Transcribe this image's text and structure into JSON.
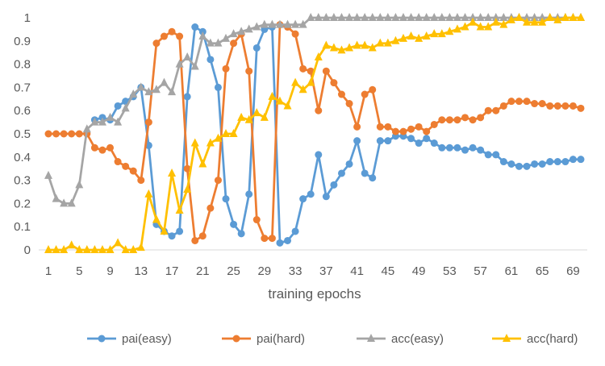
{
  "chart_data": {
    "type": "line",
    "title": "",
    "xlabel": "training epochs",
    "ylabel": "",
    "xlim": [
      1,
      70
    ],
    "ylim": [
      0,
      1
    ],
    "x_tick_labels": [
      "1",
      "5",
      "9",
      "13",
      "17",
      "21",
      "25",
      "29",
      "33",
      "37",
      "41",
      "45",
      "49",
      "53",
      "57",
      "61",
      "65",
      "69"
    ],
    "y_tick_labels": [
      "0",
      "0.1",
      "0.2",
      "0.3",
      "0.4",
      "0.5",
      "0.6",
      "0.7",
      "0.8",
      "0.9",
      "1"
    ],
    "legend_position": "bottom",
    "grid": false,
    "x": [
      1,
      2,
      3,
      4,
      5,
      6,
      7,
      8,
      9,
      10,
      11,
      12,
      13,
      14,
      15,
      16,
      17,
      18,
      19,
      20,
      21,
      22,
      23,
      24,
      25,
      26,
      27,
      28,
      29,
      30,
      31,
      32,
      33,
      34,
      35,
      36,
      37,
      38,
      39,
      40,
      41,
      42,
      43,
      44,
      45,
      46,
      47,
      48,
      49,
      50,
      51,
      52,
      53,
      54,
      55,
      56,
      57,
      58,
      59,
      60,
      61,
      62,
      63,
      64,
      65,
      66,
      67,
      68,
      69,
      70
    ],
    "series": [
      {
        "name": "pai(easy)",
        "color": "#5B9BD5",
        "marker": "circle",
        "values": [
          null,
          null,
          null,
          null,
          null,
          null,
          0.56,
          0.57,
          0.56,
          0.62,
          0.64,
          0.66,
          0.7,
          0.45,
          0.11,
          0.08,
          0.06,
          0.08,
          0.66,
          0.96,
          0.94,
          0.82,
          0.7,
          0.22,
          0.11,
          0.07,
          0.24,
          0.87,
          0.95,
          0.96,
          0.03,
          0.04,
          0.08,
          0.22,
          0.24,
          0.41,
          0.23,
          0.28,
          0.33,
          0.37,
          0.47,
          0.33,
          0.31,
          0.47,
          0.47,
          0.49,
          0.49,
          0.48,
          0.46,
          0.48,
          0.46,
          0.44,
          0.44,
          0.44,
          0.43,
          0.44,
          0.43,
          0.41,
          0.41,
          0.38,
          0.37,
          0.36,
          0.36,
          0.37,
          0.37,
          0.38,
          0.38,
          0.38,
          0.39,
          0.39
        ]
      },
      {
        "name": "pai(hard)",
        "color": "#ED7D31",
        "marker": "circle",
        "values": [
          0.5,
          0.5,
          0.5,
          0.5,
          0.5,
          0.5,
          0.44,
          0.43,
          0.44,
          0.38,
          0.36,
          0.34,
          0.3,
          0.55,
          0.89,
          0.92,
          0.94,
          0.92,
          0.35,
          0.04,
          0.06,
          0.18,
          0.3,
          0.78,
          0.89,
          0.93,
          0.77,
          0.13,
          0.05,
          0.05,
          0.97,
          0.96,
          0.93,
          0.78,
          0.77,
          0.6,
          0.77,
          0.72,
          0.67,
          0.63,
          0.53,
          0.67,
          0.69,
          0.53,
          0.53,
          0.51,
          0.51,
          0.52,
          0.53,
          0.51,
          0.54,
          0.56,
          0.56,
          0.56,
          0.57,
          0.56,
          0.57,
          0.6,
          0.6,
          0.62,
          0.64,
          0.64,
          0.64,
          0.63,
          0.63,
          0.62,
          0.62,
          0.62,
          0.62,
          0.61
        ]
      },
      {
        "name": "acc(easy)",
        "color": "#A5A5A5",
        "marker": "triangle",
        "values": [
          0.32,
          0.22,
          0.2,
          0.2,
          0.28,
          0.52,
          0.55,
          0.55,
          0.57,
          0.55,
          0.61,
          0.67,
          0.7,
          0.68,
          0.69,
          0.72,
          0.68,
          0.8,
          0.83,
          0.79,
          0.92,
          0.89,
          0.89,
          0.91,
          0.93,
          0.94,
          0.95,
          0.96,
          0.97,
          0.97,
          0.97,
          0.97,
          0.97,
          0.97,
          1,
          1,
          1,
          1,
          1,
          1,
          1,
          1,
          1,
          1,
          1,
          1,
          1,
          1,
          1,
          1,
          1,
          1,
          1,
          1,
          1,
          1,
          1,
          1,
          1,
          1,
          1,
          1,
          1,
          1,
          1,
          1,
          1,
          1,
          1,
          1
        ]
      },
      {
        "name": "acc(hard)",
        "color": "#FFC000",
        "marker": "triangle",
        "values": [
          0,
          0,
          0,
          0.02,
          0,
          0,
          0,
          0,
          0,
          0.03,
          0,
          0,
          0.01,
          0.24,
          0.13,
          0.08,
          0.33,
          0.17,
          0.26,
          0.46,
          0.37,
          0.46,
          0.48,
          0.5,
          0.5,
          0.57,
          0.56,
          0.59,
          0.57,
          0.66,
          0.64,
          0.62,
          0.72,
          0.69,
          0.72,
          0.83,
          0.88,
          0.87,
          0.86,
          0.87,
          0.88,
          0.88,
          0.87,
          0.89,
          0.89,
          0.9,
          0.91,
          0.92,
          0.91,
          0.92,
          0.93,
          0.93,
          0.94,
          0.95,
          0.96,
          0.98,
          0.96,
          0.96,
          0.98,
          0.97,
          0.99,
          1,
          0.98,
          0.98,
          0.98,
          1,
          0.99,
          1,
          1,
          1
        ]
      }
    ]
  }
}
